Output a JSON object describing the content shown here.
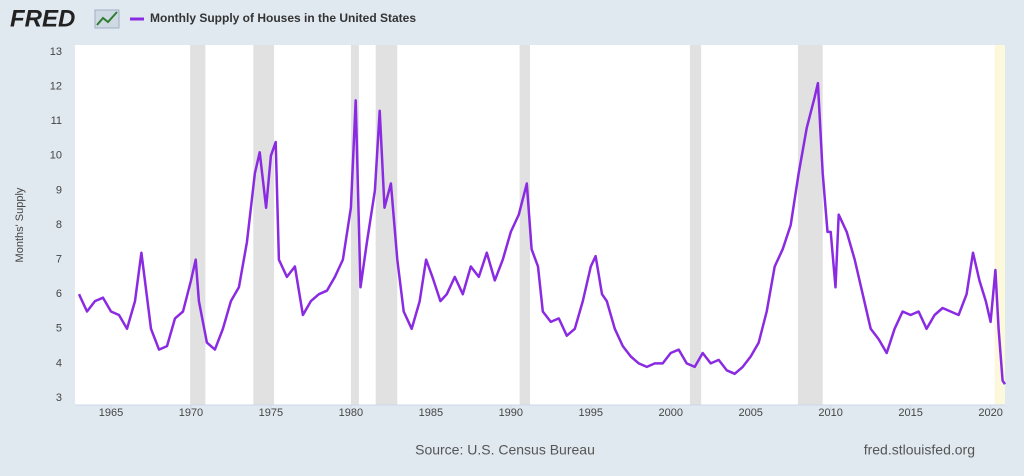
{
  "chart_data": {
    "type": "line",
    "logo": "FRED",
    "y_label": "Months' Supply",
    "source": "Source: U.S. Census Bureau",
    "site": "fred.stlouisfed.org",
    "xlim": [
      1963,
      2020.9
    ],
    "ylim": [
      3,
      13
    ],
    "xticks": [
      1965,
      1970,
      1975,
      1980,
      1985,
      1990,
      1995,
      2000,
      2005,
      2010,
      2015,
      2020
    ],
    "yticks": [
      3,
      4,
      5,
      6,
      7,
      8,
      9,
      10,
      11,
      12,
      13
    ],
    "grid": false,
    "recession_color": "#e1e1e1",
    "recessions": [
      [
        1969.95,
        1970.9
      ],
      [
        1973.9,
        1975.2
      ],
      [
        1980.0,
        1980.5
      ],
      [
        1981.55,
        1982.9
      ],
      [
        1990.55,
        1991.2
      ],
      [
        2001.2,
        2001.9
      ],
      [
        2007.95,
        2009.5
      ]
    ],
    "shaded_end": {
      "range": [
        2020.25,
        2020.9
      ],
      "color": "#fbf8dc"
    },
    "series": [
      {
        "name": "Monthly Supply of Houses in the United States",
        "color": "#8a2be2",
        "x": [
          1963.0,
          1963.5,
          1964.0,
          1964.5,
          1965.0,
          1965.5,
          1966.0,
          1966.5,
          1966.9,
          1967.5,
          1968.0,
          1968.5,
          1969.0,
          1969.5,
          1970.0,
          1970.3,
          1970.5,
          1971.0,
          1971.5,
          1972.0,
          1972.5,
          1973.0,
          1973.5,
          1974.0,
          1974.3,
          1974.7,
          1975.0,
          1975.3,
          1975.5,
          1976.0,
          1976.5,
          1977.0,
          1977.5,
          1978.0,
          1978.5,
          1979.0,
          1979.5,
          1980.0,
          1980.3,
          1980.6,
          1981.0,
          1981.5,
          1981.8,
          1982.1,
          1982.5,
          1982.9,
          1983.3,
          1983.8,
          1984.3,
          1984.7,
          1985.1,
          1985.6,
          1986.0,
          1986.5,
          1987.0,
          1987.5,
          1988.0,
          1988.5,
          1989.0,
          1989.5,
          1990.0,
          1990.5,
          1991.0,
          1991.3,
          1991.7,
          1992.0,
          1992.5,
          1993.0,
          1993.5,
          1994.0,
          1994.5,
          1995.0,
          1995.3,
          1995.7,
          1996.0,
          1996.5,
          1997.0,
          1997.5,
          1998.0,
          1998.5,
          1999.0,
          1999.5,
          2000.0,
          2000.5,
          2001.0,
          2001.5,
          2002.0,
          2002.5,
          2003.0,
          2003.5,
          2004.0,
          2004.5,
          2005.0,
          2005.5,
          2006.0,
          2006.5,
          2007.0,
          2007.5,
          2008.0,
          2008.5,
          2009.0,
          2009.2,
          2009.5,
          2009.8,
          2010.0,
          2010.3,
          2010.5,
          2011.0,
          2011.5,
          2012.0,
          2012.5,
          2013.0,
          2013.5,
          2014.0,
          2014.5,
          2015.0,
          2015.5,
          2016.0,
          2016.5,
          2017.0,
          2017.5,
          2018.0,
          2018.5,
          2018.9,
          2019.3,
          2019.7,
          2020.0,
          2020.3,
          2020.5,
          2020.75,
          2020.9
        ],
        "values": [
          6.0,
          5.5,
          5.8,
          5.9,
          5.5,
          5.4,
          5.0,
          5.8,
          7.2,
          5.0,
          4.4,
          4.5,
          5.3,
          5.5,
          6.4,
          7.0,
          5.8,
          4.6,
          4.4,
          5.0,
          5.8,
          6.2,
          7.5,
          9.5,
          10.1,
          8.5,
          10.0,
          10.4,
          7.0,
          6.5,
          6.8,
          5.4,
          5.8,
          6.0,
          6.1,
          6.5,
          7.0,
          8.5,
          11.6,
          6.2,
          7.5,
          9.0,
          11.3,
          8.5,
          9.2,
          7.0,
          5.5,
          5.0,
          5.8,
          7.0,
          6.5,
          5.8,
          6.0,
          6.5,
          6.0,
          6.8,
          6.5,
          7.2,
          6.4,
          7.0,
          7.8,
          8.3,
          9.2,
          7.3,
          6.8,
          5.5,
          5.2,
          5.3,
          4.8,
          5.0,
          5.8,
          6.8,
          7.1,
          6.0,
          5.8,
          5.0,
          4.5,
          4.2,
          4.0,
          3.9,
          4.0,
          4.0,
          4.3,
          4.4,
          4.0,
          3.9,
          4.3,
          4.0,
          4.1,
          3.8,
          3.7,
          3.9,
          4.2,
          4.6,
          5.5,
          6.8,
          7.3,
          8.0,
          9.5,
          10.8,
          11.7,
          12.1,
          9.5,
          7.8,
          7.8,
          6.2,
          8.3,
          7.8,
          7.0,
          6.0,
          5.0,
          4.7,
          4.3,
          5.0,
          5.5,
          5.4,
          5.5,
          5.0,
          5.4,
          5.6,
          5.5,
          5.4,
          6.0,
          7.2,
          6.4,
          5.8,
          5.2,
          6.7,
          5.0,
          3.5,
          3.4
        ]
      }
    ]
  }
}
